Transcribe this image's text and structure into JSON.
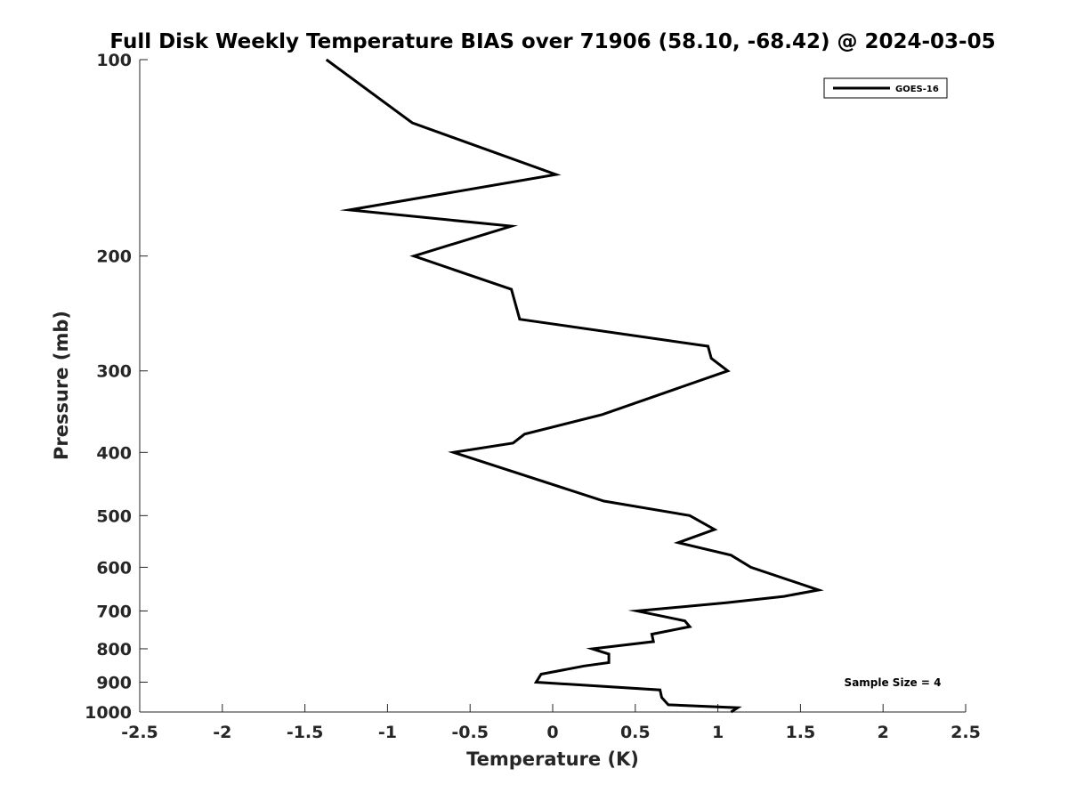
{
  "chart_data": {
    "type": "line",
    "title": "Full Disk Weekly Temperature BIAS over 71906 (58.10, -68.42) @ 2024-03-05",
    "xlabel": "Temperature (K)",
    "ylabel": "Pressure (mb)",
    "xlim": [
      -2.5,
      2.5
    ],
    "ylim": [
      100,
      1000
    ],
    "y_scale": "log",
    "y_direction": "reversed",
    "x_ticks": [
      -2.5,
      -2,
      -1.5,
      -1,
      -0.5,
      0,
      0.5,
      1,
      1.5,
      2,
      2.5
    ],
    "x_tick_labels": [
      "-2.5",
      "-2",
      "-1.5",
      "-1",
      "-0.5",
      "0",
      "0.5",
      "1",
      "1.5",
      "2",
      "2.5"
    ],
    "y_ticks": [
      100,
      200,
      300,
      400,
      500,
      600,
      700,
      800,
      900,
      1000
    ],
    "y_tick_labels": [
      "100",
      "200",
      "300",
      "400",
      "500",
      "600",
      "700",
      "800",
      "900",
      "1000"
    ],
    "grid": false,
    "legend": {
      "placement": "top-right",
      "entries": [
        "GOES-16"
      ]
    },
    "annotations": [
      "Sample Size = 4"
    ],
    "series": [
      {
        "name": "GOES-16",
        "color": "#000000",
        "points": [
          {
            "x": -1.37,
            "y": 100
          },
          {
            "x": -0.85,
            "y": 125
          },
          {
            "x": 0.02,
            "y": 150
          },
          {
            "x": -1.23,
            "y": 170
          },
          {
            "x": -0.25,
            "y": 180
          },
          {
            "x": -0.84,
            "y": 200
          },
          {
            "x": -0.25,
            "y": 225
          },
          {
            "x": -0.2,
            "y": 250
          },
          {
            "x": 0.94,
            "y": 275
          },
          {
            "x": 0.96,
            "y": 287
          },
          {
            "x": 1.06,
            "y": 300
          },
          {
            "x": 0.3,
            "y": 350
          },
          {
            "x": -0.17,
            "y": 375
          },
          {
            "x": -0.24,
            "y": 387
          },
          {
            "x": -0.6,
            "y": 400
          },
          {
            "x": 0.31,
            "y": 475
          },
          {
            "x": 0.83,
            "y": 500
          },
          {
            "x": 0.98,
            "y": 525
          },
          {
            "x": 0.76,
            "y": 550
          },
          {
            "x": 1.08,
            "y": 575
          },
          {
            "x": 1.2,
            "y": 600
          },
          {
            "x": 1.61,
            "y": 650
          },
          {
            "x": 1.4,
            "y": 665
          },
          {
            "x": 1.05,
            "y": 680
          },
          {
            "x": 0.51,
            "y": 700
          },
          {
            "x": 0.8,
            "y": 725
          },
          {
            "x": 0.83,
            "y": 740
          },
          {
            "x": 0.6,
            "y": 760
          },
          {
            "x": 0.61,
            "y": 780
          },
          {
            "x": 0.24,
            "y": 800
          },
          {
            "x": 0.34,
            "y": 815
          },
          {
            "x": 0.34,
            "y": 840
          },
          {
            "x": 0.19,
            "y": 850
          },
          {
            "x": -0.07,
            "y": 875
          },
          {
            "x": -0.1,
            "y": 900
          },
          {
            "x": 0.65,
            "y": 925
          },
          {
            "x": 0.66,
            "y": 950
          },
          {
            "x": 0.7,
            "y": 975
          },
          {
            "x": 1.12,
            "y": 985
          },
          {
            "x": 1.08,
            "y": 1000
          }
        ]
      }
    ]
  }
}
